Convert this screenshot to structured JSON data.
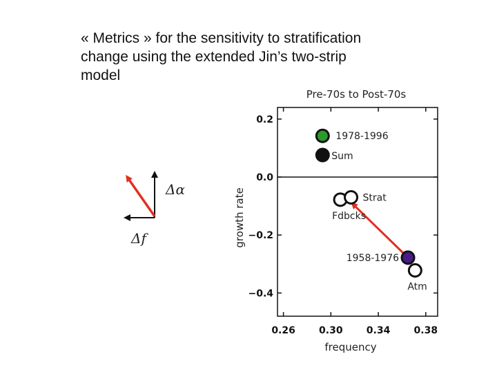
{
  "slide": {
    "title_lines": [
      "« Metrics » for the sensitivity to stratification",
      "change using the extended Jin’s two-strip",
      "model"
    ]
  },
  "legend_arrows": {
    "delta_alpha": "Δα",
    "delta_f": "Δf",
    "colors": {
      "alpha_arrow": "#e03020",
      "f_arrow": "#111111"
    }
  },
  "chart_data": {
    "type": "scatter",
    "title": "Pre-70s to Post-70s",
    "xlabel": "frequency",
    "ylabel": "growth rate",
    "xlim": [
      0.255,
      0.39
    ],
    "ylim": [
      -0.48,
      0.24
    ],
    "xticks": [
      {
        "value": 0.26,
        "label": "0.26"
      },
      {
        "value": 0.3,
        "label": "0.30"
      },
      {
        "value": 0.34,
        "label": "0.34"
      },
      {
        "value": 0.38,
        "label": "0.38"
      }
    ],
    "yticks": [
      {
        "value": 0.2,
        "label": "0.2"
      },
      {
        "value": 0.0,
        "label": "0.0"
      },
      {
        "value": -0.2,
        "label": "−0.2"
      },
      {
        "value": -0.4,
        "label": "−0.4"
      }
    ],
    "zero_line": 0.0,
    "points": [
      {
        "name": "1978-1996",
        "x": 0.293,
        "y": 0.142,
        "fill": "#2a9a2a",
        "filled": true
      },
      {
        "name": "Sum",
        "x": 0.293,
        "y": 0.076,
        "fill": "#111111",
        "filled": true
      },
      {
        "name": "Fdbcks",
        "x": 0.308,
        "y": -0.078,
        "fill": "#ffffff",
        "filled": false
      },
      {
        "name": "Strat",
        "x": 0.317,
        "y": -0.07,
        "fill": "#ffffff",
        "filled": false
      },
      {
        "name": "1958-1976",
        "x": 0.365,
        "y": -0.278,
        "fill": "#4a1a8a",
        "filled": true
      },
      {
        "name": "Atm",
        "x": 0.371,
        "y": -0.322,
        "fill": "#ffffff",
        "filled": false
      }
    ],
    "arrow": {
      "from": [
        0.365,
        -0.278
      ],
      "to": [
        0.319,
        -0.095
      ],
      "color": "#e03020"
    }
  }
}
